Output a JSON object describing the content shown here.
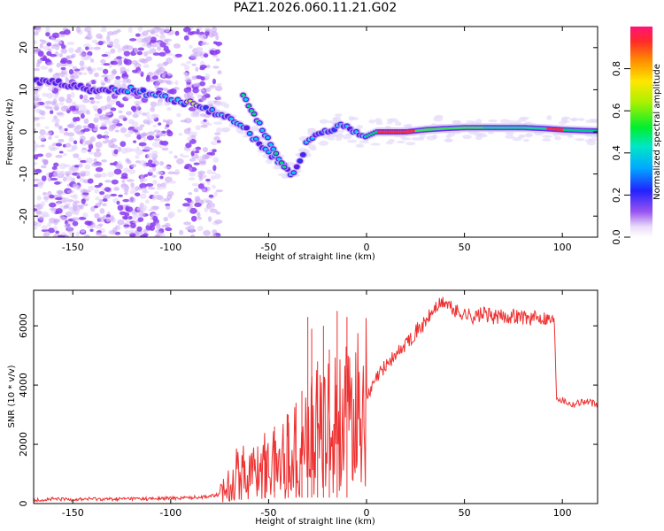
{
  "chart_data": [
    {
      "type": "heatmap",
      "title": "PAZ1.2026.060.11.21.G02",
      "xlabel": "Height of straight line (km)",
      "ylabel": "Frequency (Hz)",
      "xlim": [
        -170,
        118
      ],
      "ylim": [
        -25,
        25
      ],
      "x_ticks": [
        -150,
        -100,
        -50,
        0,
        50,
        100
      ],
      "y_ticks": [
        20,
        10,
        0,
        -10,
        -20
      ],
      "colorbar": {
        "label": "Normalized spectral amplitude",
        "range": [
          0,
          1
        ],
        "ticks": [
          0.0,
          0.2,
          0.4,
          0.6,
          0.8
        ]
      },
      "ridge": {
        "description": "main frequency ridge, frequency in Hz vs height in km",
        "x": [
          -170,
          -160,
          -150,
          -140,
          -130,
          -120,
          -110,
          -100,
          -95,
          -90,
          -85,
          -80,
          -75,
          -70,
          -65,
          -60,
          -55,
          -50,
          -45,
          -40,
          -38,
          -35,
          -30,
          -25,
          -20,
          -15,
          -12,
          -10,
          -5,
          0,
          5,
          10,
          20,
          30,
          40,
          50,
          60,
          70,
          80,
          90,
          100,
          110,
          118
        ],
        "y": [
          12,
          12,
          11,
          10,
          10,
          10,
          9,
          8,
          7,
          7,
          6,
          5,
          4,
          3,
          2,
          0,
          -3,
          -5,
          -7,
          -9,
          -10,
          -8,
          -2,
          -1,
          0,
          1,
          2,
          1,
          0,
          -1,
          0,
          0,
          0,
          0.5,
          0.8,
          1,
          1,
          1,
          1,
          0.8,
          0.5,
          0.3,
          0.2
        ]
      },
      "secondary_ridge": {
        "description": "branch near -60 to -40 km",
        "x": [
          -63,
          -60,
          -55,
          -50,
          -45,
          -42
        ],
        "y": [
          9,
          6,
          2,
          -2,
          -6,
          -8
        ]
      }
    },
    {
      "type": "line",
      "xlabel": "Height of straight line (km)",
      "ylabel": "SNR (10 * v/v)",
      "xlim": [
        -170,
        118
      ],
      "ylim": [
        0,
        7200
      ],
      "x_ticks": [
        -150,
        -100,
        -50,
        0,
        50,
        100
      ],
      "y_ticks": [
        0,
        2000,
        4000,
        6000
      ],
      "color": "#ee3030",
      "series": [
        {
          "name": "SNR",
          "x": [
            -170,
            -160,
            -150,
            -140,
            -130,
            -120,
            -110,
            -100,
            -90,
            -80,
            -75,
            -70,
            -65,
            -60,
            -55,
            -50,
            -45,
            -40,
            -35,
            -30,
            -25,
            -20,
            -15,
            -10,
            -5,
            0,
            5,
            10,
            15,
            20,
            25,
            30,
            35,
            40,
            45,
            50,
            55,
            60,
            65,
            70,
            75,
            80,
            85,
            90,
            95,
            96,
            97,
            100,
            105,
            110,
            115,
            118
          ],
          "y": [
            120,
            150,
            140,
            160,
            150,
            170,
            160,
            180,
            200,
            250,
            300,
            700,
            1100,
            1000,
            1200,
            1300,
            1400,
            1700,
            1800,
            2200,
            2400,
            2600,
            3000,
            2800,
            3200,
            3500,
            4200,
            4700,
            5000,
            5400,
            5800,
            6100,
            6600,
            6800,
            6500,
            6400,
            6300,
            6400,
            6300,
            6300,
            6350,
            6300,
            6250,
            6300,
            6200,
            6100,
            3600,
            3500,
            3350,
            3450,
            3400,
            3300
          ]
        }
      ],
      "spikes": {
        "x": [
          -52,
          -47,
          -40,
          -36,
          -33,
          -30,
          -28,
          -25,
          -22,
          -19,
          -15,
          -10
        ],
        "y": [
          1800,
          2600,
          3000,
          3400,
          3800,
          6300,
          5900,
          4800,
          6000,
          5200,
          6500,
          6300
        ]
      }
    }
  ]
}
